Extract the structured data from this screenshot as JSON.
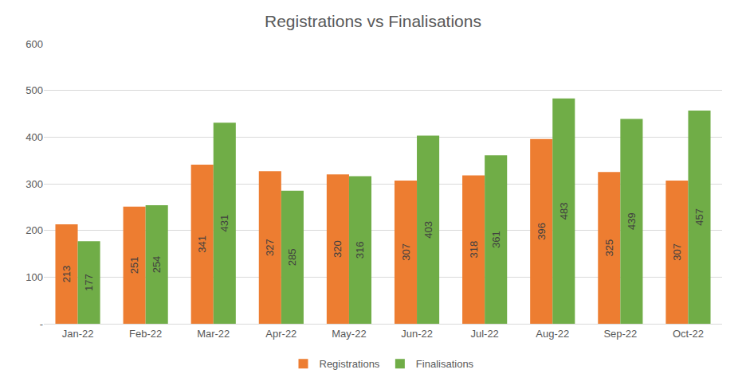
{
  "chart_data": {
    "type": "bar",
    "title": "Registrations vs Finalisations",
    "categories": [
      "Jan-22",
      "Feb-22",
      "Mar-22",
      "Apr-22",
      "May-22",
      "Jun-22",
      "Jul-22",
      "Aug-22",
      "Sep-22",
      "Oct-22"
    ],
    "series": [
      {
        "name": "Registrations",
        "color": "#ED7D31",
        "values": [
          213,
          251,
          341,
          327,
          320,
          307,
          318,
          396,
          325,
          307
        ]
      },
      {
        "name": "Finalisations",
        "color": "#70AD47",
        "values": [
          177,
          254,
          431,
          285,
          316,
          403,
          361,
          483,
          439,
          457
        ]
      }
    ],
    "ylim": [
      0,
      600
    ],
    "yticks": [
      {
        "value": 0,
        "label": "-"
      },
      100,
      200,
      300,
      400,
      500,
      600
    ],
    "grid": true,
    "legend": "bottom",
    "data_labels": true
  }
}
